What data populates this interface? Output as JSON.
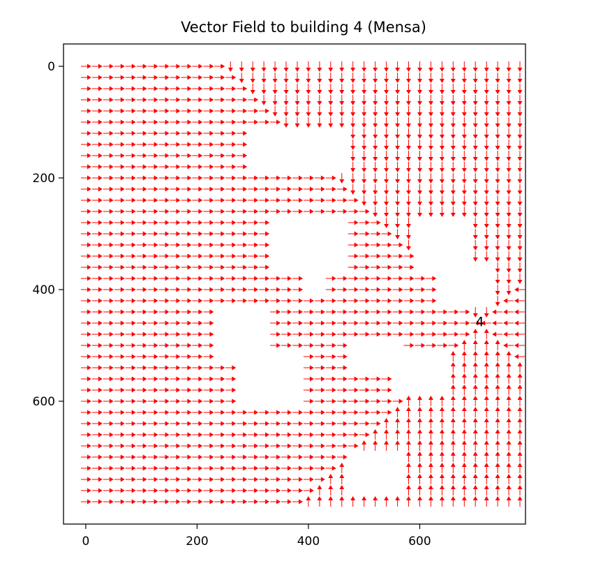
{
  "chart_data": {
    "type": "quiver",
    "title": "Vector Field to building 4 (Mensa)",
    "xlabel": "",
    "ylabel": "",
    "xlim": [
      -40,
      790
    ],
    "ylim": [
      820,
      -40
    ],
    "y_axis_inverted": true,
    "x_ticks": [
      0,
      200,
      400,
      600
    ],
    "y_ticks": [
      0,
      200,
      400,
      600
    ],
    "grid": false,
    "legend": "none",
    "arrow_color": "#ff0000",
    "grid_spacing": 20,
    "field_extent": {
      "x": [
        0,
        780
      ],
      "y": [
        0,
        780
      ]
    },
    "target": {
      "label": "4",
      "x": 708,
      "y": 457
    },
    "obstacles": [
      {
        "x": [
          290,
          420
        ],
        "y": [
          110,
          180
        ]
      },
      {
        "x": [
          390,
          470
        ],
        "y": [
          120,
          190
        ]
      },
      {
        "x": [
          330,
          460
        ],
        "y": [
          280,
          360
        ]
      },
      {
        "x": [
          390,
          430
        ],
        "y": [
          330,
          400
        ]
      },
      {
        "x": [
          590,
          680
        ],
        "y": [
          280,
          370
        ]
      },
      {
        "x": [
          640,
          720
        ],
        "y": [
          360,
          430
        ]
      },
      {
        "x": [
          240,
          330
        ],
        "y": [
          430,
          520
        ]
      },
      {
        "x": [
          280,
          390
        ],
        "y": [
          520,
          610
        ]
      },
      {
        "x": [
          470,
          560
        ],
        "y": [
          500,
          540
        ]
      },
      {
        "x": [
          560,
          640
        ],
        "y": [
          520,
          590
        ]
      },
      {
        "x": [
          480,
          560
        ],
        "y": [
          690,
          770
        ]
      }
    ]
  }
}
